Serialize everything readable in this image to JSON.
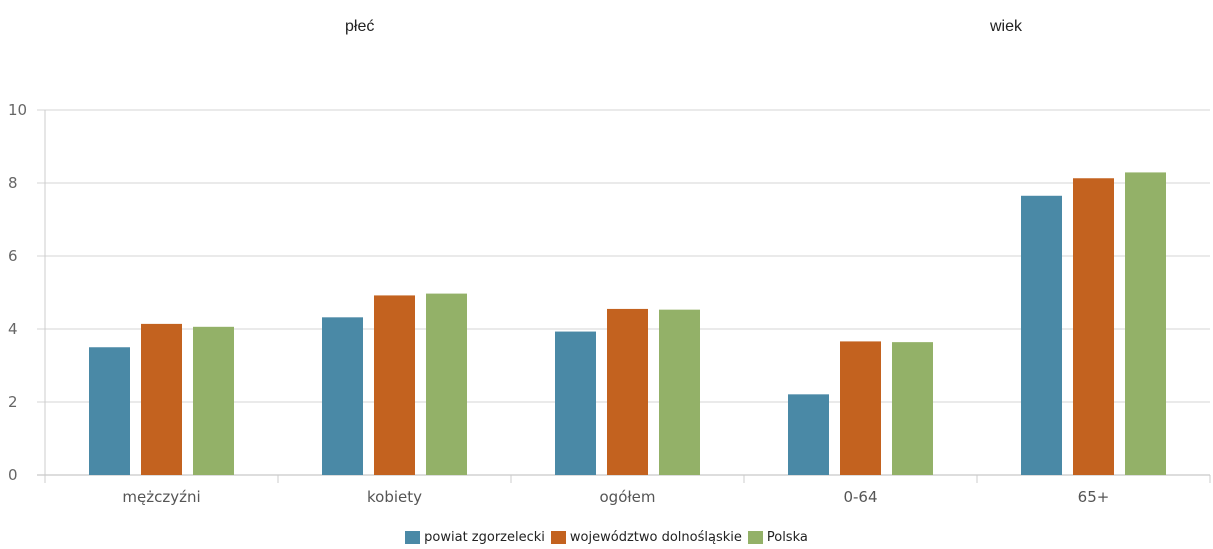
{
  "headings": {
    "left": "płeć",
    "right": "wiek"
  },
  "chart_data": {
    "type": "bar",
    "categories": [
      "mężczyźni",
      "kobiety",
      "ogółem",
      "0-64",
      "65+"
    ],
    "series": [
      {
        "name": "powiat zgorzelecki",
        "color": "#4a89a6",
        "values": [
          3.5,
          4.32,
          3.93,
          2.21,
          7.65
        ]
      },
      {
        "name": "województwo dolnośląskie",
        "color": "#c3621f",
        "values": [
          4.14,
          4.92,
          4.55,
          3.66,
          8.13
        ]
      },
      {
        "name": "Polska",
        "color": "#93b168",
        "values": [
          4.06,
          4.97,
          4.53,
          3.64,
          8.29
        ]
      }
    ],
    "ylim": [
      0,
      10
    ],
    "yticks": [
      "0",
      "2",
      "4",
      "6",
      "8",
      "10"
    ],
    "grid": true,
    "legend": "bottom"
  }
}
